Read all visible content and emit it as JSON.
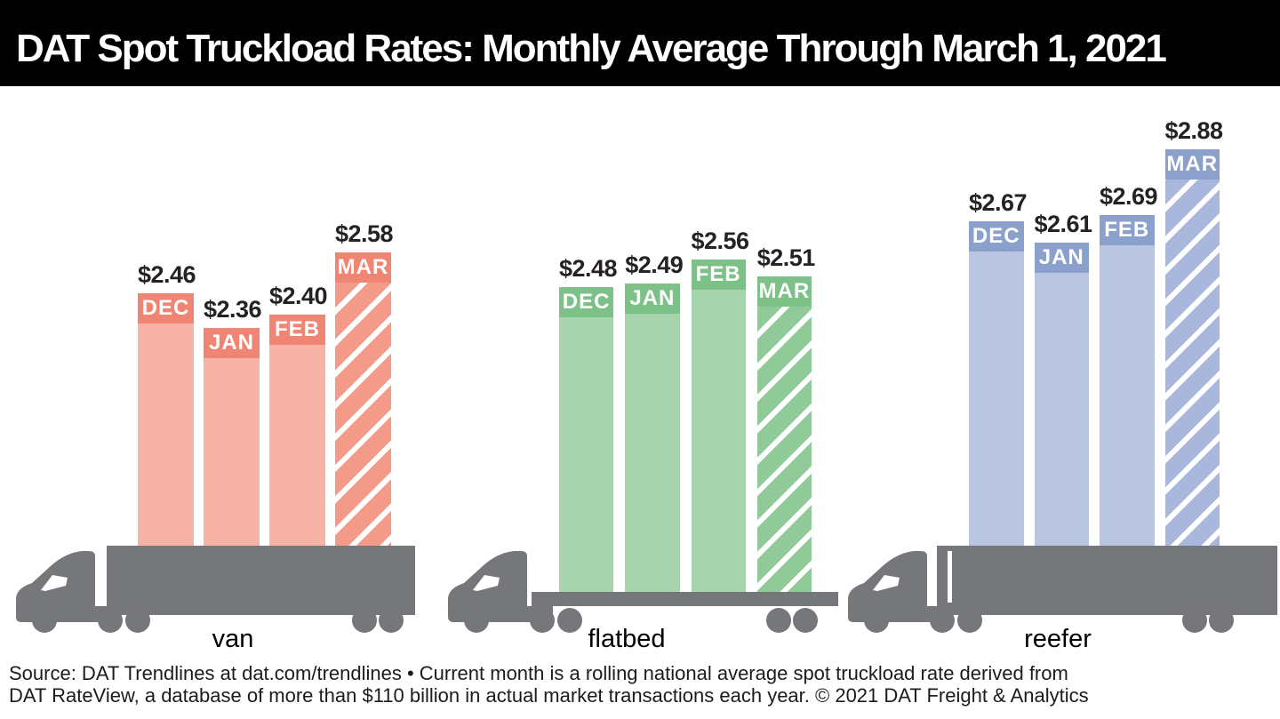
{
  "banner": {
    "title": "DAT Spot Truckload Rates: Monthly Average Through March 1, 2021",
    "bg": "#000000",
    "text_color": "#ffffff"
  },
  "chart_data": {
    "type": "bar",
    "title": "DAT Spot Truckload Rates: Monthly Average Through March 1, 2021",
    "categories": [
      "DEC",
      "JAN",
      "FEB",
      "MAR"
    ],
    "hatched_category": "MAR",
    "value_prefix": "$",
    "value_label_color": "#262223",
    "truck_color": "#76777a",
    "groups": [
      {
        "label": "van",
        "values": [
          2.46,
          2.36,
          2.4,
          2.58
        ],
        "values_display": [
          "$2.46",
          "$2.36",
          "$2.40",
          "$2.58"
        ],
        "colors": {
          "header": "#f08573",
          "body": "#f6b3a6",
          "hatch": "#f39a89"
        }
      },
      {
        "label": "flatbed",
        "values": [
          2.48,
          2.49,
          2.56,
          2.51
        ],
        "values_display": [
          "$2.48",
          "$2.49",
          "$2.56",
          "$2.51"
        ],
        "colors": {
          "header": "#7ec188",
          "body": "#a7d4ad",
          "hatch": "#90ca99"
        }
      },
      {
        "label": "reefer",
        "values": [
          2.67,
          2.61,
          2.69,
          2.88
        ],
        "values_display": [
          "$2.67",
          "$2.61",
          "$2.69",
          "$2.88"
        ],
        "colors": {
          "header": "#8ba1cc",
          "body": "#bac5e2",
          "hatch": "#a8b7db"
        }
      }
    ]
  },
  "footer": {
    "line1": "Source: DAT Trendlines at dat.com/trendlines • Current month is a rolling national average spot truckload rate derived from",
    "line2": "DAT RateView, a database of more than $110 billion in actual market transactions each year. © 2021 DAT Freight & Analytics"
  }
}
